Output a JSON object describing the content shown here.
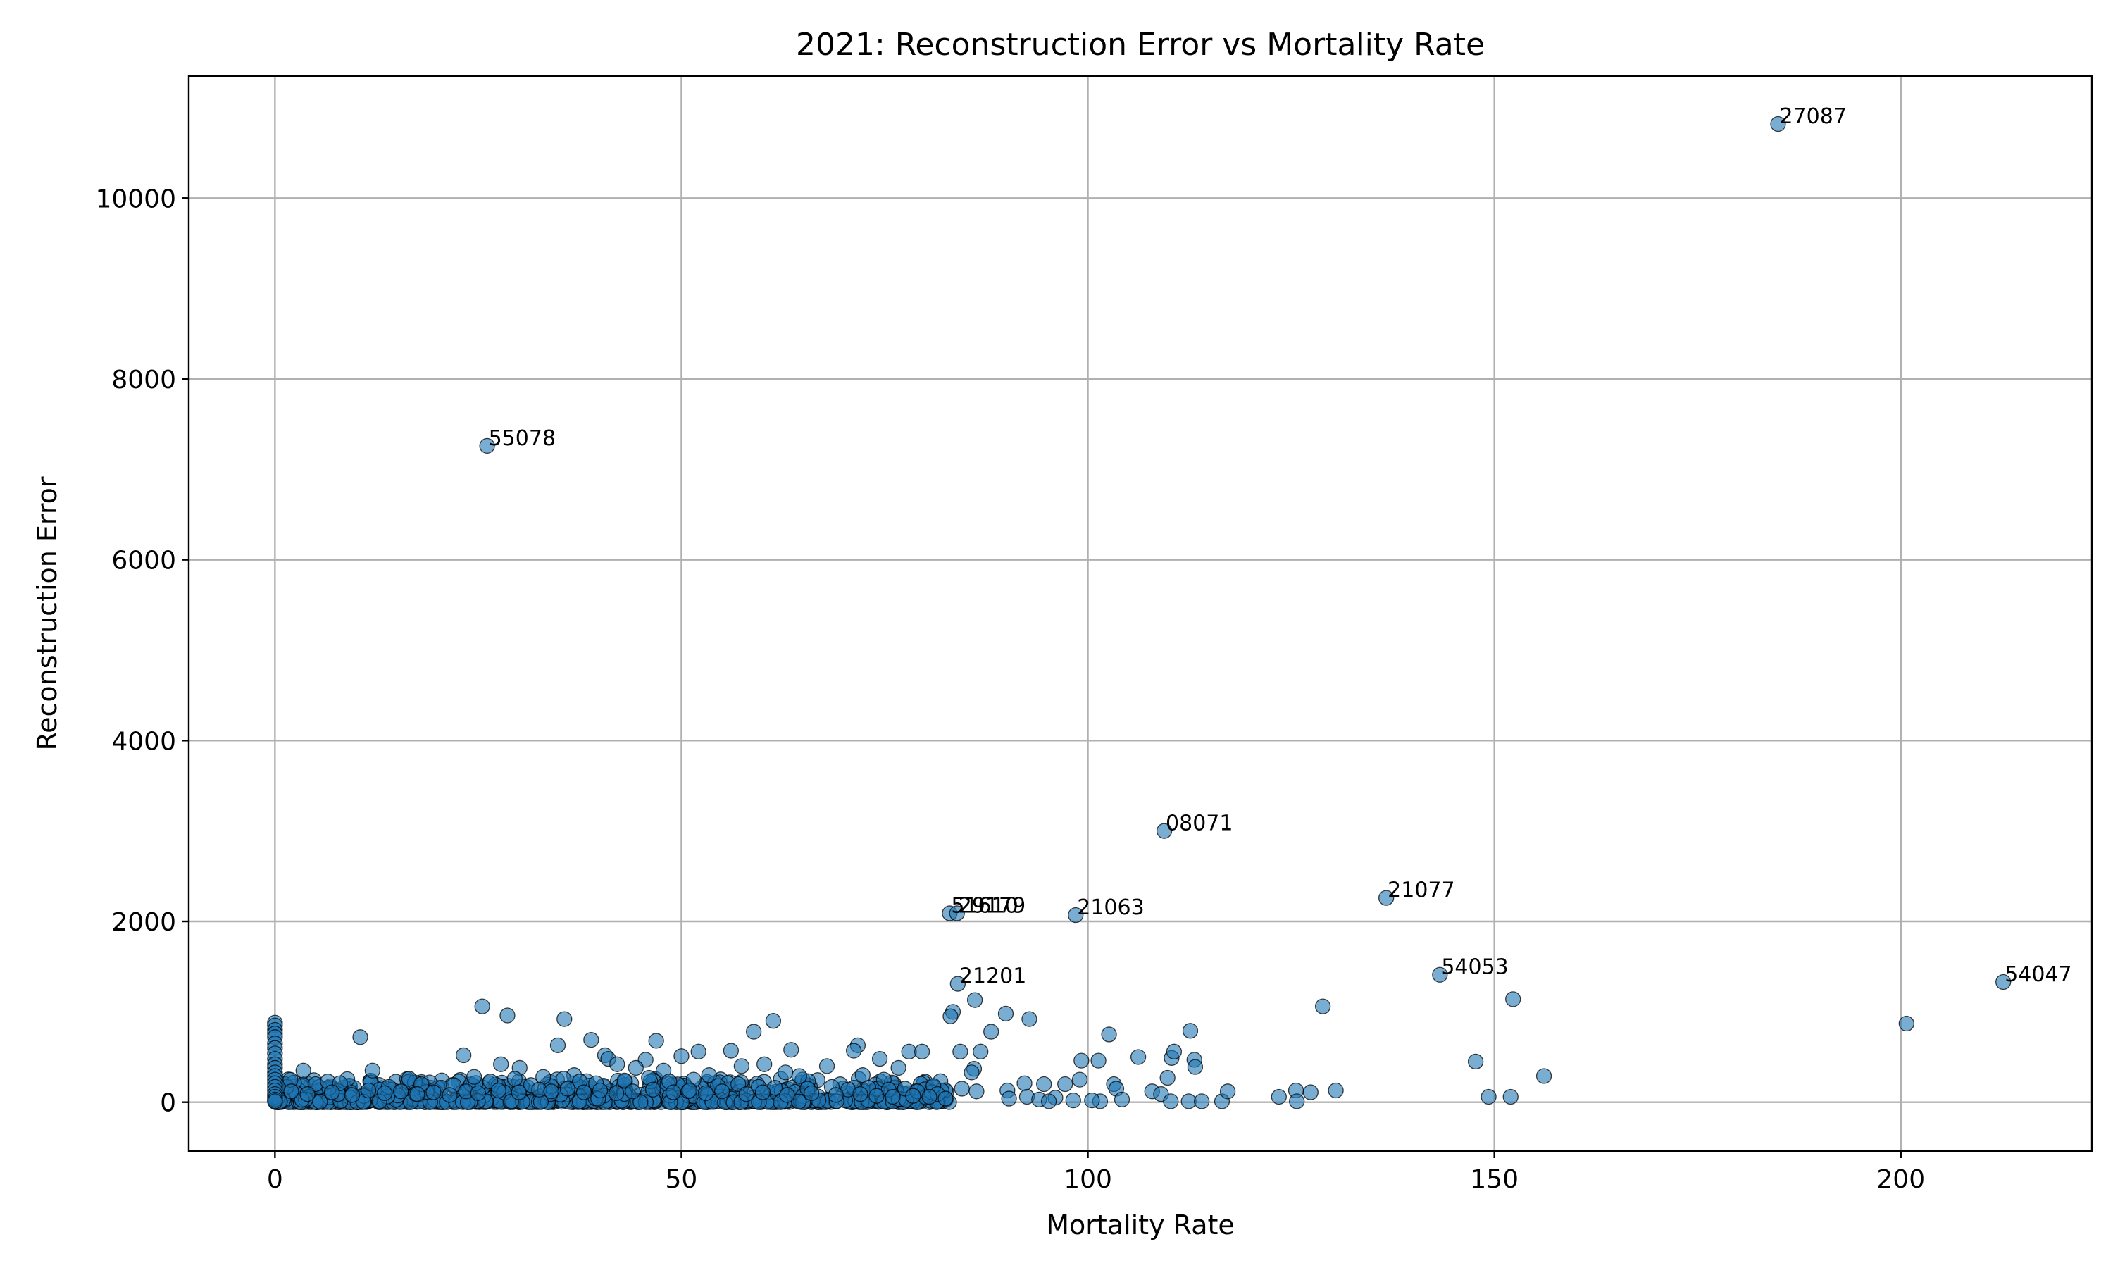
{
  "chart_data": {
    "type": "scatter",
    "title": "2021: Reconstruction Error vs Mortality Rate",
    "xlabel": "Mortality Rate",
    "ylabel": "Reconstruction Error",
    "xlim": [
      -10.6,
      223.5
    ],
    "ylim": [
      -540,
      11350
    ],
    "xticks": [
      0,
      50,
      100,
      150,
      200
    ],
    "yticks": [
      0,
      2000,
      4000,
      6000,
      8000,
      10000
    ],
    "grid": true,
    "legend": "none",
    "marker_color": "#1f77b4",
    "labeled_points": [
      {
        "x": 184.9,
        "y": 10820,
        "label": "27087"
      },
      {
        "x": 26.1,
        "y": 7260,
        "label": "55078"
      },
      {
        "x": 109.4,
        "y": 3000,
        "label": "08071"
      },
      {
        "x": 136.7,
        "y": 2260,
        "label": "21077"
      },
      {
        "x": 83.0,
        "y": 2090,
        "label": "51610"
      },
      {
        "x": 83.9,
        "y": 2090,
        "label": "29179"
      },
      {
        "x": 98.5,
        "y": 2070,
        "label": "21063"
      },
      {
        "x": 143.3,
        "y": 1410,
        "label": "54053"
      },
      {
        "x": 212.6,
        "y": 1330,
        "label": "54047"
      },
      {
        "x": 84.0,
        "y": 1310,
        "label": "21201"
      }
    ],
    "other_points": [
      [
        0,
        880
      ],
      [
        0,
        850
      ],
      [
        0,
        800
      ],
      [
        0,
        760
      ],
      [
        0,
        720
      ],
      [
        0,
        650
      ],
      [
        0,
        600
      ],
      [
        0,
        540
      ],
      [
        0,
        480
      ],
      [
        0,
        420
      ],
      [
        0,
        380
      ],
      [
        0,
        330
      ],
      [
        0,
        290
      ],
      [
        0,
        250
      ],
      [
        0,
        210
      ],
      [
        0,
        170
      ],
      [
        0,
        130
      ],
      [
        0,
        90
      ],
      [
        0,
        60
      ],
      [
        0,
        30
      ],
      [
        0,
        10
      ],
      [
        25.5,
        1060
      ],
      [
        28.6,
        960
      ],
      [
        35.6,
        920
      ],
      [
        61.3,
        900
      ],
      [
        10.5,
        720
      ],
      [
        46.9,
        680
      ],
      [
        38.9,
        690
      ],
      [
        58.9,
        780
      ],
      [
        23.2,
        520
      ],
      [
        40.6,
        520
      ],
      [
        45.6,
        470
      ],
      [
        52.1,
        560
      ],
      [
        56.1,
        570
      ],
      [
        63.5,
        580
      ],
      [
        50.0,
        510
      ],
      [
        41.0,
        480
      ],
      [
        34.8,
        630
      ],
      [
        42.1,
        420
      ],
      [
        44.4,
        380
      ],
      [
        47.8,
        350
      ],
      [
        12.0,
        350
      ],
      [
        3.5,
        350
      ],
      [
        27.8,
        420
      ],
      [
        30.1,
        380
      ],
      [
        36.8,
        300
      ],
      [
        53.4,
        300
      ],
      [
        57.4,
        400
      ],
      [
        60.2,
        420
      ],
      [
        62.8,
        330
      ],
      [
        64.5,
        290
      ],
      [
        67.9,
        400
      ],
      [
        71.7,
        630
      ],
      [
        74.4,
        480
      ],
      [
        76.7,
        380
      ],
      [
        78.0,
        560
      ],
      [
        79.6,
        560
      ],
      [
        71.2,
        570
      ],
      [
        72.3,
        300
      ],
      [
        74.9,
        250
      ],
      [
        82.0,
        130
      ],
      [
        83.4,
        1000
      ],
      [
        83.1,
        950
      ],
      [
        86.1,
        1130
      ],
      [
        89.9,
        980
      ],
      [
        92.8,
        920
      ],
      [
        88.1,
        780
      ],
      [
        86.8,
        560
      ],
      [
        84.3,
        560
      ],
      [
        86.0,
        370
      ],
      [
        85.7,
        330
      ],
      [
        84.5,
        150
      ],
      [
        86.3,
        120
      ],
      [
        90.1,
        130
      ],
      [
        92.2,
        210
      ],
      [
        94.6,
        200
      ],
      [
        97.2,
        200
      ],
      [
        99.0,
        250
      ],
      [
        101.3,
        460
      ],
      [
        102.6,
        750
      ],
      [
        99.2,
        460
      ],
      [
        103.2,
        200
      ],
      [
        103.5,
        150
      ],
      [
        104.2,
        30
      ],
      [
        101.5,
        10
      ],
      [
        106.2,
        500
      ],
      [
        107.9,
        120
      ],
      [
        109.0,
        90
      ],
      [
        109.8,
        270
      ],
      [
        110.3,
        490
      ],
      [
        110.6,
        560
      ],
      [
        112.6,
        790
      ],
      [
        113.1,
        470
      ],
      [
        113.2,
        390
      ],
      [
        110.2,
        10
      ],
      [
        112.4,
        10
      ],
      [
        114.0,
        10
      ],
      [
        116.5,
        10
      ],
      [
        117.2,
        120
      ],
      [
        123.5,
        60
      ],
      [
        125.6,
        130
      ],
      [
        125.7,
        10
      ],
      [
        127.4,
        110
      ],
      [
        128.9,
        1060
      ],
      [
        130.5,
        130
      ],
      [
        147.7,
        450
      ],
      [
        149.3,
        60
      ],
      [
        152.0,
        60
      ],
      [
        152.3,
        1140
      ],
      [
        156.1,
        290
      ],
      [
        200.7,
        870
      ],
      [
        90.3,
        40
      ],
      [
        92.5,
        60
      ],
      [
        94.0,
        30
      ],
      [
        96.0,
        50
      ],
      [
        98.2,
        20
      ],
      [
        95.2,
        10
      ],
      [
        100.5,
        20
      ],
      [
        5.0,
        200
      ],
      [
        6.5,
        230
      ],
      [
        8.0,
        210
      ],
      [
        14.0,
        170
      ],
      [
        16.5,
        260
      ],
      [
        18.0,
        200
      ],
      [
        20.5,
        160
      ],
      [
        22.0,
        190
      ],
      [
        24.5,
        280
      ],
      [
        26.5,
        230
      ],
      [
        29.5,
        260
      ],
      [
        31.5,
        190
      ],
      [
        33.0,
        280
      ],
      [
        35.5,
        260
      ],
      [
        37.5,
        230
      ],
      [
        39.5,
        210
      ],
      [
        43.0,
        240
      ],
      [
        46.0,
        270
      ],
      [
        48.5,
        230
      ],
      [
        51.5,
        250
      ],
      [
        54.5,
        180
      ],
      [
        57.0,
        200
      ],
      [
        59.5,
        170
      ],
      [
        61.5,
        160
      ],
      [
        65.5,
        150
      ],
      [
        68.5,
        170
      ],
      [
        70.5,
        140
      ],
      [
        73.0,
        160
      ],
      [
        75.5,
        140
      ],
      [
        77.5,
        150
      ],
      [
        79.0,
        120
      ],
      [
        81.0,
        180
      ],
      [
        81.5,
        90
      ],
      [
        2.0,
        120
      ],
      [
        4.0,
        90
      ],
      [
        7.0,
        110
      ],
      [
        9.5,
        80
      ],
      [
        11.5,
        130
      ],
      [
        13.5,
        100
      ],
      [
        15.5,
        120
      ],
      [
        17.5,
        90
      ],
      [
        19.5,
        110
      ],
      [
        21.5,
        80
      ],
      [
        23.5,
        120
      ],
      [
        25.0,
        100
      ],
      [
        27.5,
        130
      ],
      [
        30.0,
        110
      ],
      [
        32.5,
        140
      ],
      [
        34.0,
        120
      ],
      [
        36.0,
        150
      ],
      [
        38.0,
        110
      ],
      [
        40.0,
        130
      ],
      [
        42.0,
        100
      ],
      [
        44.0,
        120
      ],
      [
        46.5,
        140
      ],
      [
        49.0,
        110
      ],
      [
        51.0,
        130
      ],
      [
        53.0,
        100
      ],
      [
        55.0,
        120
      ],
      [
        58.0,
        90
      ],
      [
        60.0,
        110
      ],
      [
        63.0,
        80
      ],
      [
        66.0,
        100
      ],
      [
        69.0,
        80
      ],
      [
        72.0,
        90
      ],
      [
        74.0,
        70
      ],
      [
        76.0,
        60
      ],
      [
        78.5,
        70
      ],
      [
        80.5,
        60
      ],
      [
        82.5,
        40
      ]
    ]
  }
}
